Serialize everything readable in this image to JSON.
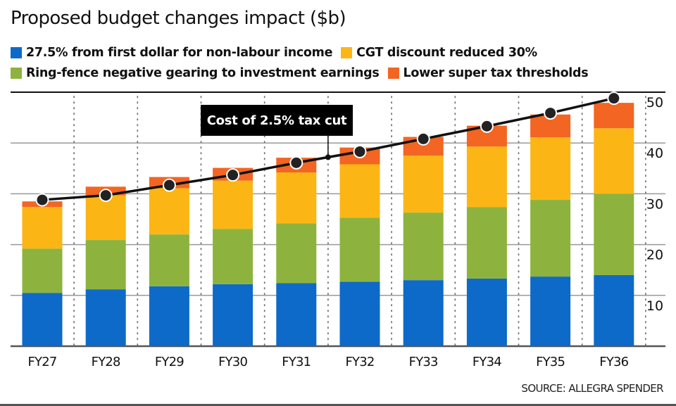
{
  "chart_data": {
    "type": "bar",
    "stacked": true,
    "title": "Proposed budget changes impact ($b)",
    "xlabel": "",
    "ylabel": "",
    "ylim": [
      0,
      50
    ],
    "yticks": [
      10,
      20,
      30,
      40,
      50
    ],
    "ytick_position": "right",
    "grid": true,
    "legend_placement": "top",
    "categories": [
      "FY27",
      "FY28",
      "FY29",
      "FY30",
      "FY31",
      "FY32",
      "FY33",
      "FY34",
      "FY35",
      "FY36"
    ],
    "series": [
      {
        "name": "27.5% from first dollar for non-labour income",
        "color": "#0e6ac8",
        "values": [
          10.5,
          11.2,
          11.8,
          12.2,
          12.4,
          12.7,
          13.0,
          13.3,
          13.7,
          14.0
        ]
      },
      {
        "name": "Ring-fence negative gearing to investment earnings",
        "color": "#8db33e",
        "values": [
          8.7,
          9.7,
          10.2,
          10.9,
          11.8,
          12.6,
          13.3,
          14.1,
          15.1,
          16.0
        ]
      },
      {
        "name": "CGT discount reduced 30%",
        "color": "#fbb615",
        "values": [
          8.2,
          8.8,
          9.1,
          9.5,
          10.0,
          10.5,
          11.2,
          11.9,
          12.3,
          12.9
        ]
      },
      {
        "name": "Lower super tax thresholds",
        "color": "#f26522",
        "values": [
          1.1,
          1.7,
          2.2,
          2.5,
          2.9,
          3.3,
          3.7,
          4.1,
          4.5,
          5.0
        ]
      }
    ],
    "line_series": {
      "name": "Cost of 2.5% tax cut",
      "color": "#111111",
      "values": [
        28.8,
        29.7,
        31.7,
        33.7,
        36.1,
        38.3,
        40.8,
        43.3,
        45.9,
        48.8
      ]
    },
    "legend_order": [
      [
        "27.5% from first dollar for non-labour income",
        "CGT discount reduced 30%"
      ],
      [
        "Ring-fence negative gearing to investment earnings",
        "Lower super tax thresholds"
      ]
    ],
    "annotation": {
      "text": "Cost of 2.5% tax cut",
      "points_to_category_between": [
        "FY31",
        "FY32"
      ]
    },
    "source": "SOURCE: ALLEGRA SPENDER"
  },
  "legend": [
    {
      "label": "27.5% from first dollar for non-labour income",
      "color": "#0e6ac8"
    },
    {
      "label": "CGT discount reduced 30%",
      "color": "#fbb615"
    },
    {
      "label": "Ring-fence negative gearing to investment earnings",
      "color": "#8db33e"
    },
    {
      "label": "Lower super tax thresholds",
      "color": "#f26522"
    }
  ]
}
